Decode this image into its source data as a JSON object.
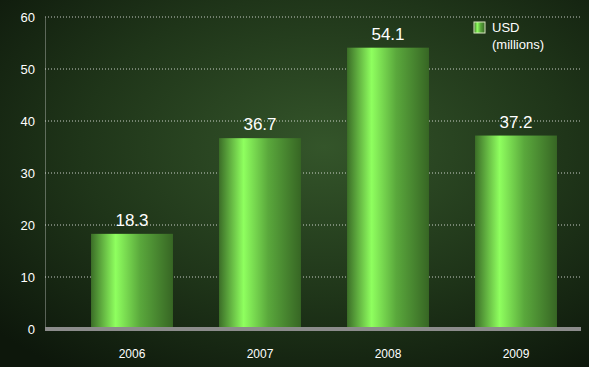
{
  "chart_data": {
    "type": "bar",
    "categories": [
      "2006",
      "2007",
      "2008",
      "2009"
    ],
    "series": [
      {
        "name": "USD (millions)",
        "color": "#5aa83c",
        "values": [
          18.3,
          36.7,
          54.1,
          37.2
        ]
      }
    ],
    "ylim": [
      0,
      60
    ],
    "yticks": [
      0,
      10,
      20,
      30,
      40,
      50,
      60
    ],
    "grid": true,
    "data_labels": true,
    "legend": "upper right"
  }
}
